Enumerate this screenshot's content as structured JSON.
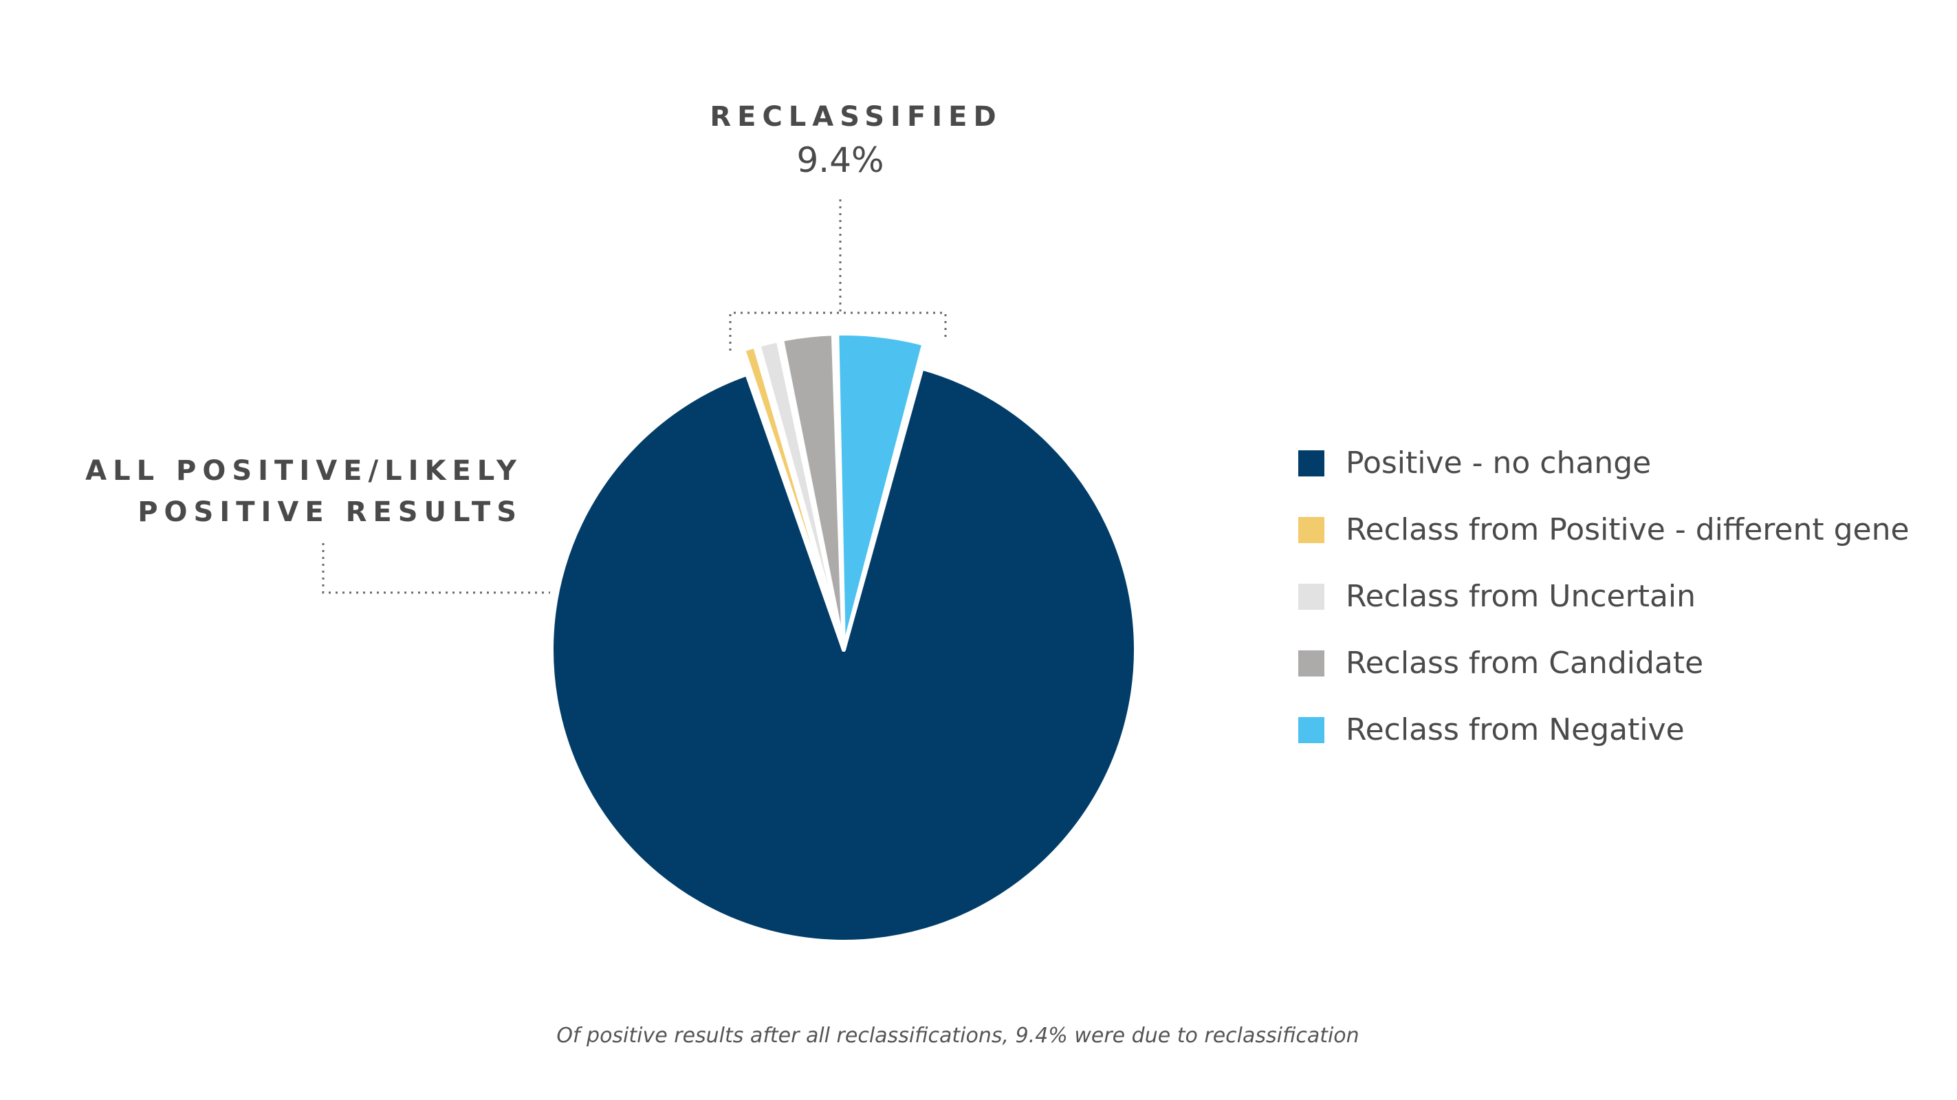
{
  "chart_data": {
    "type": "pie",
    "title": "",
    "unit": "%",
    "slices": [
      {
        "name": "Positive - no change",
        "value": 90.6,
        "color": "#013d68"
      },
      {
        "name": "Reclass from Positive - different gene",
        "value": 0.8,
        "color": "#f2cb6c"
      },
      {
        "name": "Reclass from Uncertain",
        "value": 1.2,
        "color": "#e2e2e3"
      },
      {
        "name": "Reclass from Candidate",
        "value": 2.8,
        "color": "#adaaaa"
      },
      {
        "name": "Reclass from Negative",
        "value": 4.6,
        "color": "#4dc2f0"
      }
    ],
    "exploded": [
      "Reclass from Positive - different gene",
      "Reclass from Uncertain",
      "Reclass from Candidate",
      "Reclass from Negative"
    ],
    "legend_position": "right",
    "annotations": {
      "reclassified": {
        "label": "RECLASSIFIED",
        "value": "9.4%"
      },
      "all_positive": {
        "line1": "ALL POSITIVE/LIKELY",
        "line2": "POSITIVE RESULTS"
      }
    },
    "caption": "Of positive results after all reclassifications, 9.4% were due to reclassification"
  }
}
